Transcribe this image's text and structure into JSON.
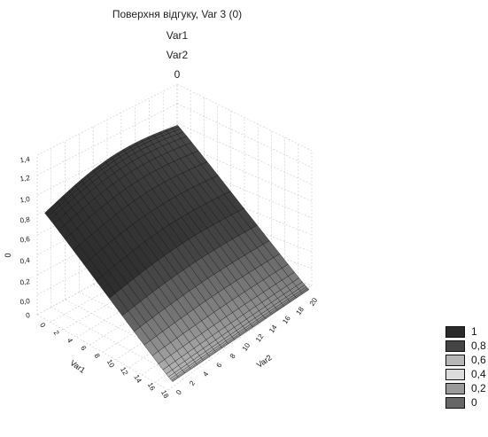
{
  "chart_data": {
    "type": "surface3d",
    "title": [
      "Поверхня відгуку, Var 3 (0)",
      "Var1",
      "Var2",
      "0"
    ],
    "xlabel": "Var1",
    "ylabel": "Var2",
    "zlabel": "0",
    "x_ticks": [
      "0",
      "2",
      "4",
      "6",
      "8",
      "10",
      "12",
      "14",
      "16",
      "18"
    ],
    "y_ticks": [
      "0",
      "2",
      "4",
      "6",
      "8",
      "10",
      "12",
      "14",
      "16",
      "18",
      "20"
    ],
    "z_ticks": [
      "0",
      "0,0",
      "0,2",
      "0,4",
      "0,6",
      "0,8",
      "1,0",
      "1,2",
      "1,4"
    ],
    "xlim": [
      0,
      18
    ],
    "ylim": [
      0,
      20
    ],
    "zlim": [
      0,
      1.4
    ],
    "grid": true,
    "surface_samples": [
      {
        "var1": 0,
        "var2": 0,
        "z": 1.0
      },
      {
        "var1": 0,
        "var2": 20,
        "z": 1.4
      },
      {
        "var1": 18,
        "var2": 0,
        "z": 0.05
      },
      {
        "var1": 18,
        "var2": 20,
        "z": 0.12
      }
    ],
    "legend": {
      "placement": "bottom-right",
      "items": [
        {
          "label": "1",
          "color": "#2b2b2b"
        },
        {
          "label": "0,8",
          "color": "#444444"
        },
        {
          "label": "0,6",
          "color": "#b7b7b7"
        },
        {
          "label": "0,4",
          "color": "#dcdcdc"
        },
        {
          "label": "0,2",
          "color": "#9a9a9a"
        },
        {
          "label": "0",
          "color": "#666666"
        }
      ]
    }
  }
}
